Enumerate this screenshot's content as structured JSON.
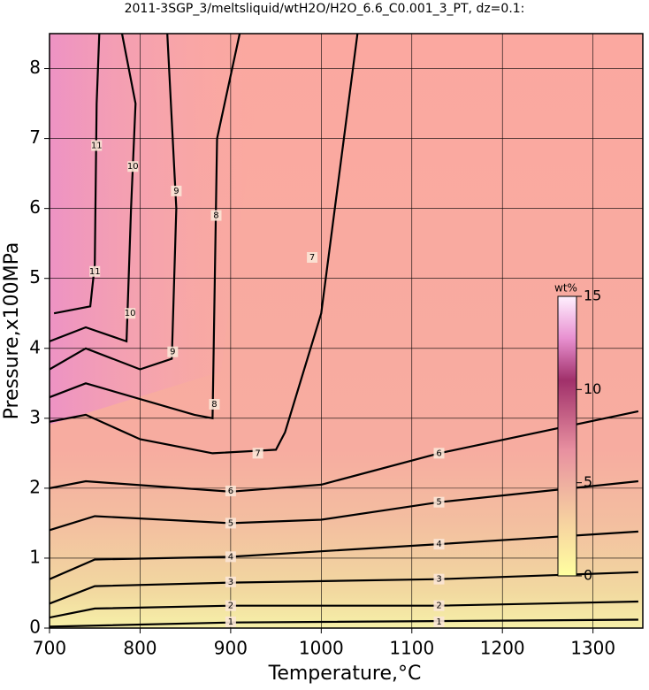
{
  "chart_data": {
    "type": "contour",
    "title": "2011-3SGP_3/meltsliquid/wtH2O/H2O_6.6_C0.001_3_PT, dz=0.1:",
    "x_label": "Temperature,°C",
    "y_label": "Pressure,x100MPa",
    "xlim": [
      700,
      1355
    ],
    "ylim": [
      0,
      8.5
    ],
    "xticks": [
      700,
      800,
      900,
      1000,
      1100,
      1200,
      1300
    ],
    "yticks": [
      0,
      1,
      2,
      3,
      4,
      5,
      6,
      7,
      8
    ],
    "grid": true,
    "contours": [
      {
        "level": 1,
        "x": [
          700,
          900,
          1350
        ],
        "y": [
          0.02,
          0.08,
          0.12
        ],
        "label_at": [
          [
            900,
            0.09
          ],
          [
            1130,
            0.09
          ]
        ]
      },
      {
        "level": 2,
        "x": [
          700,
          750,
          900,
          1130,
          1350
        ],
        "y": [
          0.15,
          0.28,
          0.32,
          0.32,
          0.38
        ],
        "label_at": [
          [
            900,
            0.32
          ],
          [
            1130,
            0.32
          ]
        ]
      },
      {
        "level": 3,
        "x": [
          700,
          750,
          900,
          1130,
          1350
        ],
        "y": [
          0.35,
          0.6,
          0.65,
          0.7,
          0.8
        ],
        "label_at": [
          [
            900,
            0.66
          ],
          [
            1130,
            0.7
          ]
        ]
      },
      {
        "level": 4,
        "x": [
          700,
          750,
          900,
          1130,
          1350
        ],
        "y": [
          0.7,
          0.98,
          1.02,
          1.2,
          1.38
        ],
        "label_at": [
          [
            900,
            1.02
          ],
          [
            1130,
            1.2
          ]
        ]
      },
      {
        "level": 5,
        "x": [
          700,
          750,
          900,
          1000,
          1130,
          1350
        ],
        "y": [
          1.4,
          1.6,
          1.5,
          1.55,
          1.8,
          2.1
        ],
        "label_at": [
          [
            900,
            1.5
          ],
          [
            1130,
            1.8
          ]
        ]
      },
      {
        "level": 6,
        "x": [
          700,
          740,
          900,
          1000,
          1130,
          1350
        ],
        "y": [
          2.0,
          2.1,
          1.95,
          2.05,
          2.5,
          3.1
        ],
        "label_at": [
          [
            900,
            1.96
          ],
          [
            1130,
            2.5
          ]
        ]
      },
      {
        "level": 7,
        "x": [
          700,
          740,
          800,
          880,
          950,
          960,
          1000,
          1040
        ],
        "y": [
          2.95,
          3.05,
          2.7,
          2.5,
          2.55,
          2.8,
          4.5,
          8.5
        ],
        "label_at": [
          [
            930,
            2.5
          ],
          [
            990,
            5.3
          ]
        ]
      },
      {
        "level": 8,
        "x": [
          700,
          740,
          860,
          880,
          885,
          910
        ],
        "y": [
          3.3,
          3.5,
          3.05,
          3.0,
          7.0,
          8.5
        ],
        "label_at": [
          [
            882,
            3.2
          ],
          [
            884,
            5.9
          ]
        ]
      },
      {
        "level": 9,
        "x": [
          700,
          740,
          800,
          835,
          840,
          830
        ],
        "y": [
          3.7,
          4.0,
          3.7,
          3.85,
          6.0,
          8.5
        ],
        "label_at": [
          [
            836,
            3.95
          ],
          [
            840,
            6.25
          ]
        ]
      },
      {
        "level": 10,
        "x": [
          700,
          740,
          785,
          790,
          795,
          780
        ],
        "y": [
          4.1,
          4.3,
          4.1,
          6.0,
          7.5,
          8.5
        ],
        "label_at": [
          [
            789,
            4.5
          ],
          [
            792,
            6.6
          ]
        ]
      },
      {
        "level": 11,
        "x": [
          705,
          745,
          750,
          752,
          755
        ],
        "y": [
          4.5,
          4.6,
          5.2,
          7.5,
          8.5
        ],
        "label_at": [
          [
            750,
            5.1
          ],
          [
            752,
            6.9
          ]
        ]
      }
    ],
    "colorbar": {
      "label": "wt%",
      "clim": [
        0,
        15
      ],
      "ticks": [
        0,
        5,
        10,
        15
      ]
    }
  }
}
